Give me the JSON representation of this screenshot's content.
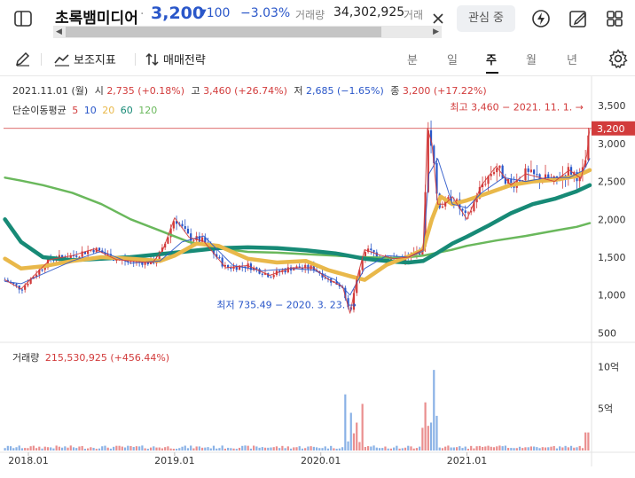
{
  "header": {
    "name": "초록뱀미디어",
    "separator": "·",
    "price": "3,200",
    "change_arrow": "▼",
    "change": "100",
    "change_pct": "−3.03%",
    "volume_label": "거래량",
    "volume": "34,302,925",
    "volume_label_2": "거래",
    "watch_label": "관심 중"
  },
  "toolbar": {
    "indicator_label": "보조지표",
    "strategy_label": "매매전략",
    "periods": [
      "분",
      "일",
      "주",
      "월",
      "년"
    ],
    "active_period": "주"
  },
  "ohlc": {
    "date": "2021.11.01 (월)",
    "open_label": "시",
    "open": "2,735 (+0.18%)",
    "high_label": "고",
    "high": "3,460 (+26.74%)",
    "low_label": "저",
    "low": "2,685 (−1.65%)",
    "close_label": "종",
    "close": "3,200 (+17.22%)"
  },
  "ma_legend": {
    "label": "단순이동평균",
    "periods": [
      "5",
      "10",
      "20",
      "60",
      "120"
    ],
    "colors": [
      "#d23b3b",
      "#2a57c9",
      "#e9b84a",
      "#178a76",
      "#6ab85c"
    ]
  },
  "volume_legend": {
    "label": "거래량",
    "value": "215,530,925 (+456.44%)"
  },
  "annotations": {
    "max": "최고 3,460 − 2021. 11. 1. →",
    "min": "최저 735.49 − 2020. 3. 23. →",
    "current_price_tag": "3,200"
  },
  "colors": {
    "up": "#d23b3b",
    "down": "#2a57c9",
    "ma5": "#d23b3b",
    "ma10": "#2a57c9",
    "ma20": "#e9b84a",
    "ma60": "#178a76",
    "ma120": "#6ab85c",
    "vol_up": "#ea8f8f",
    "vol_down": "#8ab2e6"
  },
  "chart_data": {
    "type": "line",
    "title": "",
    "price_axis": [
      "3,500",
      "3,000",
      "2,500",
      "2,000",
      "1,500",
      "1,000",
      "500"
    ],
    "price_ticks": [
      3500,
      3000,
      2500,
      2000,
      1500,
      1000,
      500
    ],
    "volume_axis": [
      "10억",
      "5억"
    ],
    "volume_ticks": [
      1000000000,
      500000000
    ],
    "x_labels": [
      "2018.01",
      "2019.01",
      "2020.01",
      "2021.01"
    ],
    "x_ticks": [
      2018.0,
      2019.0,
      2020.0,
      2021.0
    ],
    "xlim": [
      2017.83,
      2021.84
    ],
    "ylim": [
      400,
      3560
    ],
    "max_price": 3460,
    "min_price": 735.49,
    "current_price": 3200,
    "series": [
      {
        "name": "5",
        "x": [
          2017.84,
          2017.95,
          2018.05,
          2018.15,
          2018.3,
          2018.45,
          2018.6,
          2018.75,
          2018.85,
          2018.92,
          2019.0,
          2019.1,
          2019.2,
          2019.35,
          2019.5,
          2019.65,
          2019.8,
          2019.95,
          2020.05,
          2020.15,
          2020.2,
          2020.25,
          2020.3,
          2020.4,
          2020.5,
          2020.6,
          2020.7,
          2020.73,
          2020.76,
          2020.8,
          2020.85,
          2020.9,
          2021.0,
          2021.1,
          2021.2,
          2021.3,
          2021.4,
          2021.5,
          2021.6,
          2021.7,
          2021.78,
          2021.82,
          2021.84
        ],
        "y": [
          1200,
          1080,
          1280,
          1470,
          1520,
          1610,
          1470,
          1440,
          1430,
          1600,
          2020,
          1760,
          1710,
          1360,
          1390,
          1260,
          1360,
          1360,
          1210,
          1110,
          760,
          1240,
          1600,
          1530,
          1480,
          1500,
          1600,
          3200,
          3000,
          2200,
          2200,
          2300,
          2000,
          2450,
          2700,
          2450,
          2600,
          2550,
          2500,
          2650,
          2540,
          2850,
          3200
        ]
      },
      {
        "name": "10",
        "x": [
          2017.84,
          2017.95,
          2018.1,
          2018.3,
          2018.5,
          2018.7,
          2018.9,
          2019.05,
          2019.2,
          2019.4,
          2019.6,
          2019.8,
          2019.95,
          2020.1,
          2020.2,
          2020.3,
          2020.45,
          2020.6,
          2020.7,
          2020.74,
          2020.8,
          2020.9,
          2021.0,
          2021.1,
          2021.25,
          2021.4,
          2021.55,
          2021.7,
          2021.8,
          2021.84
        ],
        "y": [
          1180,
          1150,
          1280,
          1450,
          1580,
          1420,
          1450,
          1700,
          1780,
          1390,
          1320,
          1350,
          1330,
          1200,
          1000,
          1350,
          1520,
          1500,
          1580,
          2600,
          2800,
          2200,
          2150,
          2350,
          2550,
          2500,
          2550,
          2550,
          2650,
          2800
        ]
      },
      {
        "name": "20",
        "x": [
          2017.84,
          2017.95,
          2018.1,
          2018.3,
          2018.5,
          2018.7,
          2018.9,
          2019.0,
          2019.15,
          2019.3,
          2019.5,
          2019.7,
          2019.9,
          2020.05,
          2020.2,
          2020.3,
          2020.45,
          2020.6,
          2020.7,
          2020.76,
          2020.82,
          2020.9,
          2021.0,
          2021.15,
          2021.3,
          2021.45,
          2021.6,
          2021.75,
          2021.84
        ],
        "y": [
          1480,
          1350,
          1380,
          1450,
          1500,
          1480,
          1450,
          1520,
          1680,
          1650,
          1480,
          1430,
          1450,
          1330,
          1250,
          1200,
          1400,
          1510,
          1600,
          2000,
          2300,
          2200,
          2250,
          2350,
          2450,
          2500,
          2520,
          2570,
          2650
        ]
      },
      {
        "name": "60",
        "x": [
          2017.84,
          2017.95,
          2018.1,
          2018.3,
          2018.5,
          2018.7,
          2018.9,
          2019.1,
          2019.3,
          2019.5,
          2019.7,
          2019.9,
          2020.1,
          2020.3,
          2020.5,
          2020.6,
          2020.7,
          2020.8,
          2020.9,
          2021.0,
          2021.15,
          2021.3,
          2021.45,
          2021.6,
          2021.75,
          2021.84
        ],
        "y": [
          2000,
          1700,
          1500,
          1460,
          1480,
          1500,
          1540,
          1580,
          1620,
          1630,
          1620,
          1590,
          1550,
          1480,
          1440,
          1430,
          1450,
          1560,
          1680,
          1770,
          1920,
          2080,
          2200,
          2270,
          2370,
          2450
        ]
      },
      {
        "name": "120",
        "x": [
          2017.84,
          2017.95,
          2018.1,
          2018.3,
          2018.5,
          2018.7,
          2018.9,
          2019.1,
          2019.3,
          2019.5,
          2019.7,
          2019.9,
          2020.1,
          2020.3,
          2020.5,
          2020.6,
          2020.7,
          2020.8,
          2020.9,
          2021.0,
          2021.2,
          2021.4,
          2021.6,
          2021.75,
          2021.84
        ],
        "y": [
          2550,
          2510,
          2450,
          2350,
          2200,
          2000,
          1850,
          1700,
          1620,
          1570,
          1560,
          1540,
          1520,
          1500,
          1490,
          1500,
          1520,
          1560,
          1600,
          1650,
          1720,
          1780,
          1850,
          1900,
          1950
        ]
      }
    ]
  }
}
